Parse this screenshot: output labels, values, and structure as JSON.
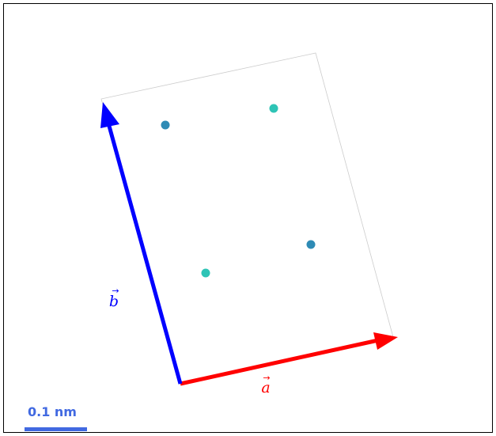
{
  "vectors": {
    "a": {
      "label": "a",
      "arrow_glyph": "→",
      "color": "#ff0000"
    },
    "b": {
      "label": "b",
      "arrow_glyph": "→",
      "color": "#0000ff"
    }
  },
  "atoms": {
    "types": [
      {
        "color": "#2e8bb5"
      },
      {
        "color": "#2ec4b6"
      }
    ]
  },
  "cell_outline_color": "#c8c8c8",
  "scale_bar": {
    "label": "0.1 nm",
    "color": "#4169e1"
  }
}
